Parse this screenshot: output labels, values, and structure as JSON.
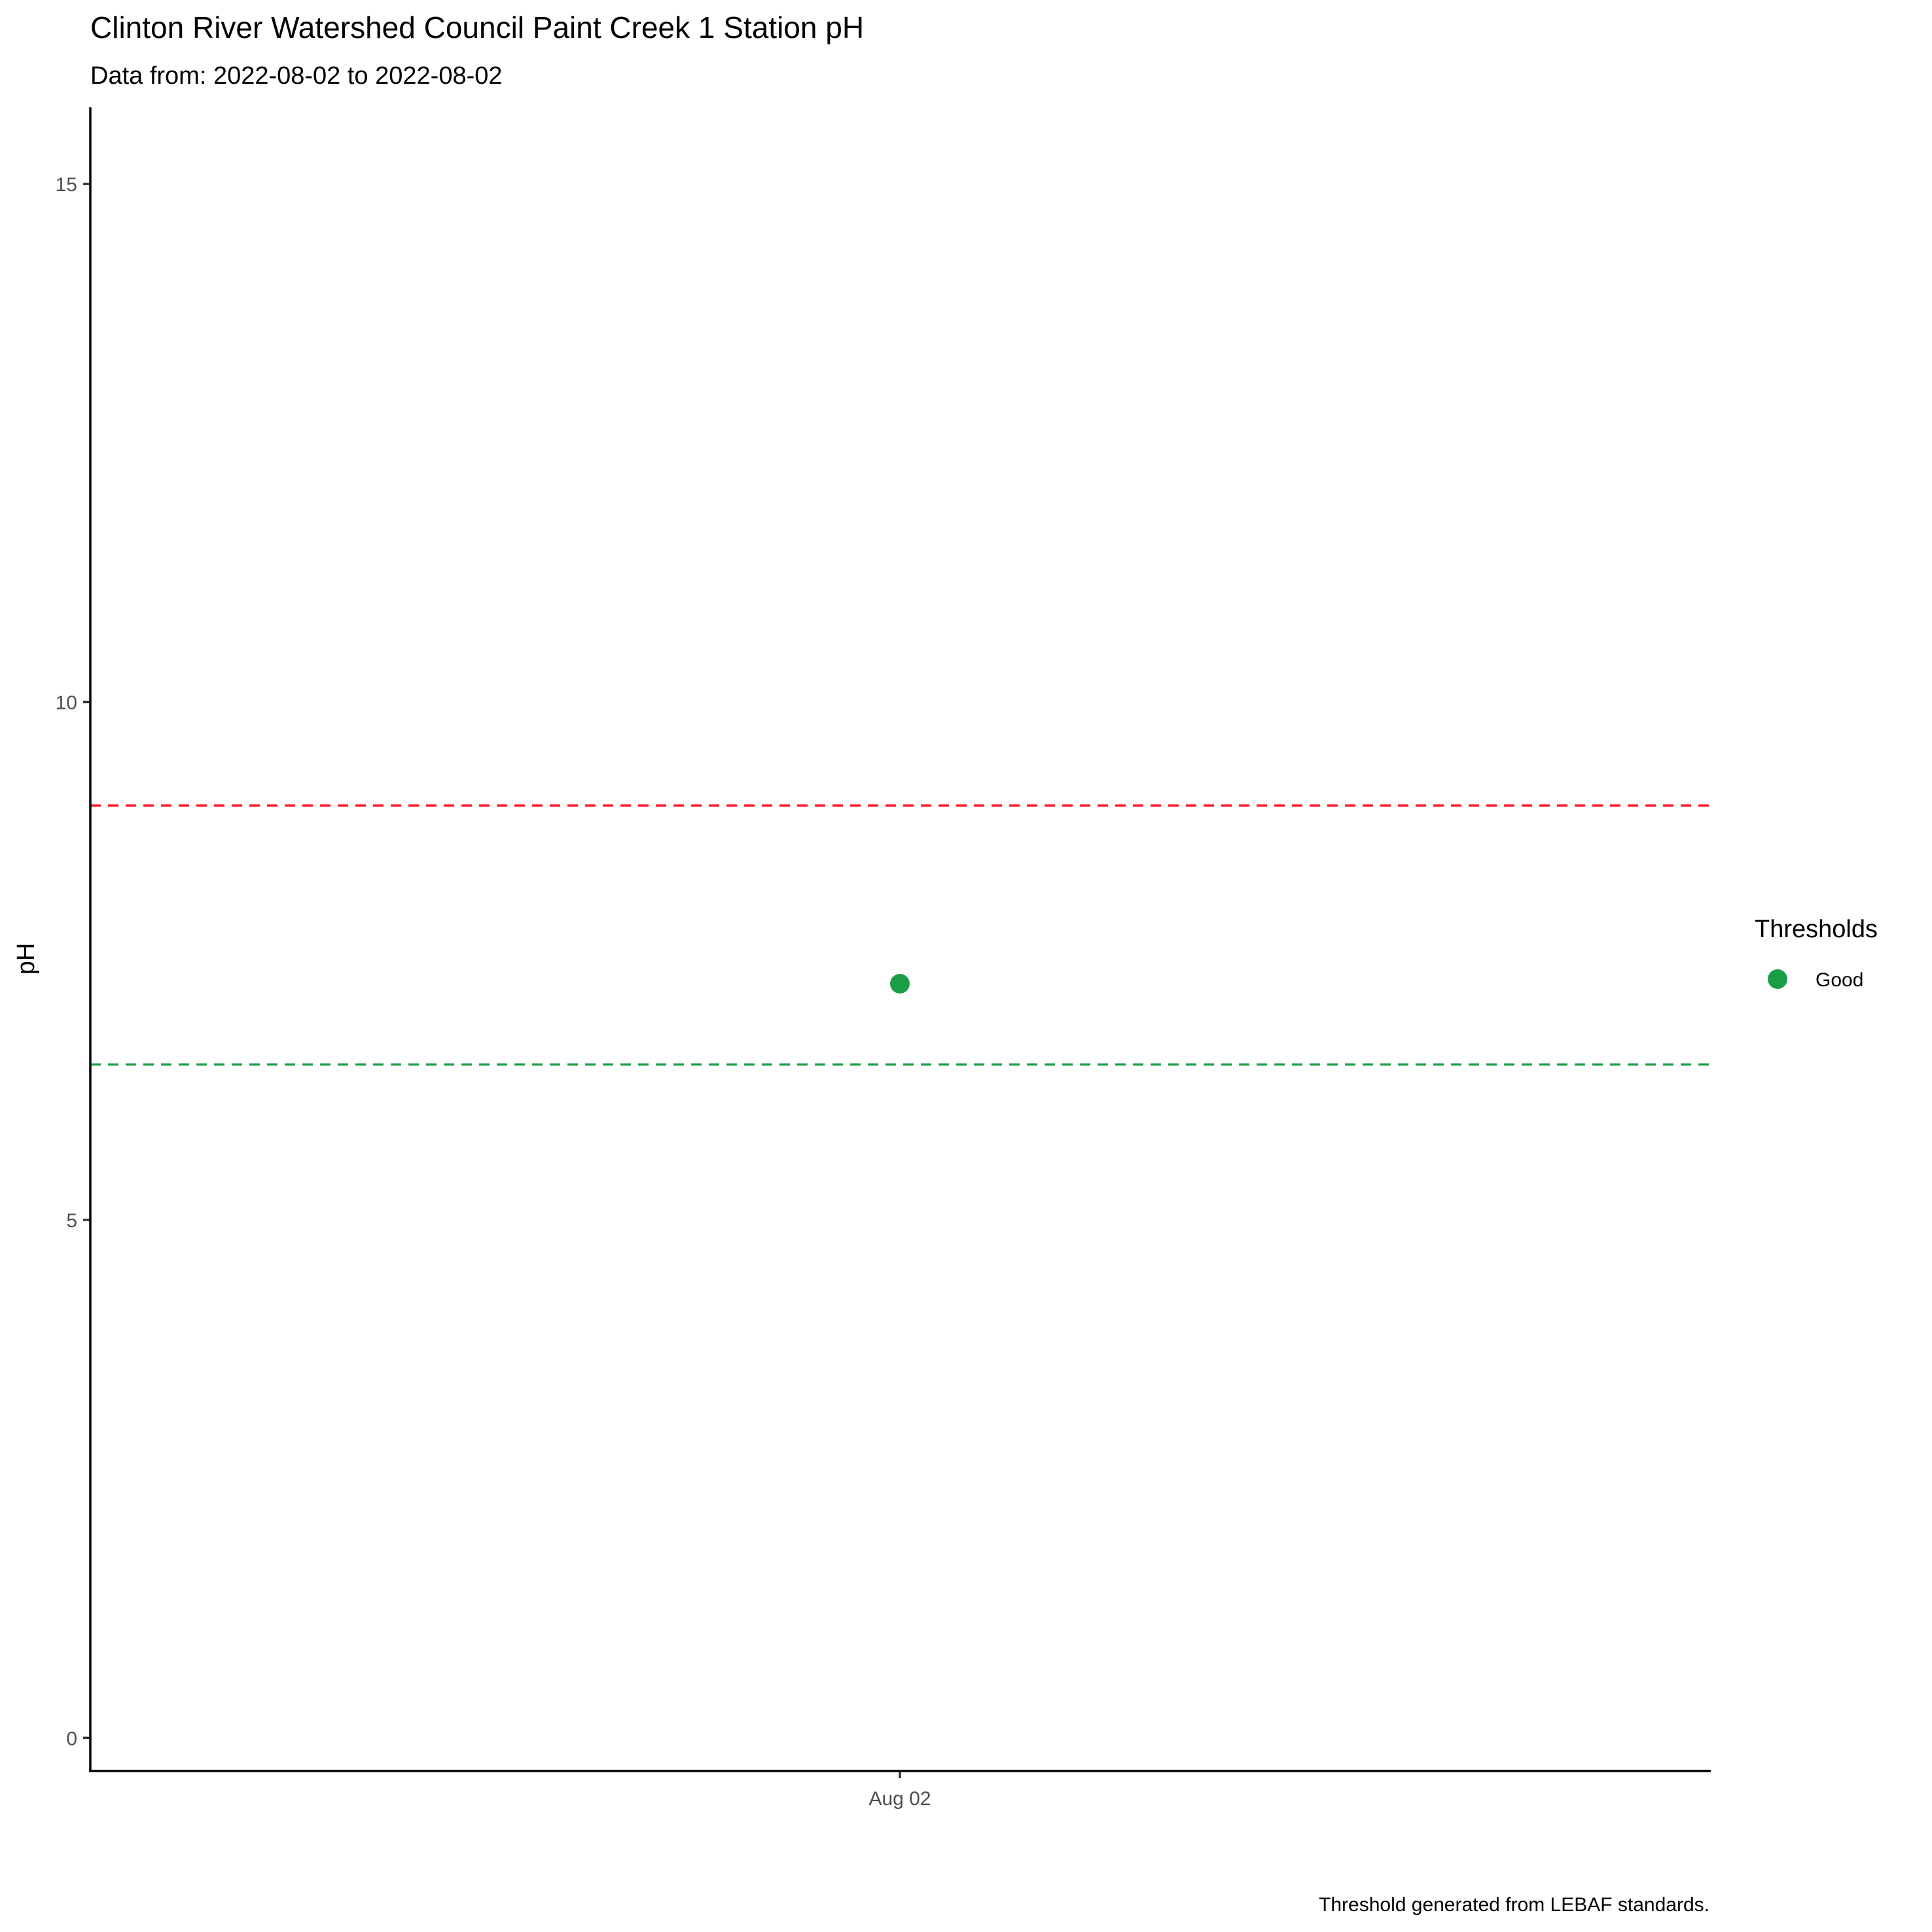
{
  "chart_data": {
    "type": "scatter",
    "title": "Clinton River Watershed Council Paint Creek 1 Station pH",
    "subtitle": "Data from: 2022-08-02 to 2022-08-02",
    "caption": "Threshold generated from LEBAF standards.",
    "xlabel": "",
    "ylabel": "pH",
    "x_tick_labels": [
      "Aug 02"
    ],
    "y_ticks": [
      0,
      5,
      10,
      15
    ],
    "ylim": [
      -0.32,
      15.74
    ],
    "grid": false,
    "legend": {
      "title": "Thresholds",
      "position": "right",
      "entries": [
        {
          "label": "Good",
          "color": "#1a9e45"
        }
      ]
    },
    "series": [
      {
        "name": "Good",
        "color": "#1a9e45",
        "points": [
          {
            "x": "Aug 02",
            "y": 7.28
          }
        ]
      }
    ],
    "reference_lines": [
      {
        "y": 9.0,
        "color": "#ff1a2e",
        "style": "dashed"
      },
      {
        "y": 6.5,
        "color": "#1a9e45",
        "style": "dashed"
      }
    ]
  }
}
